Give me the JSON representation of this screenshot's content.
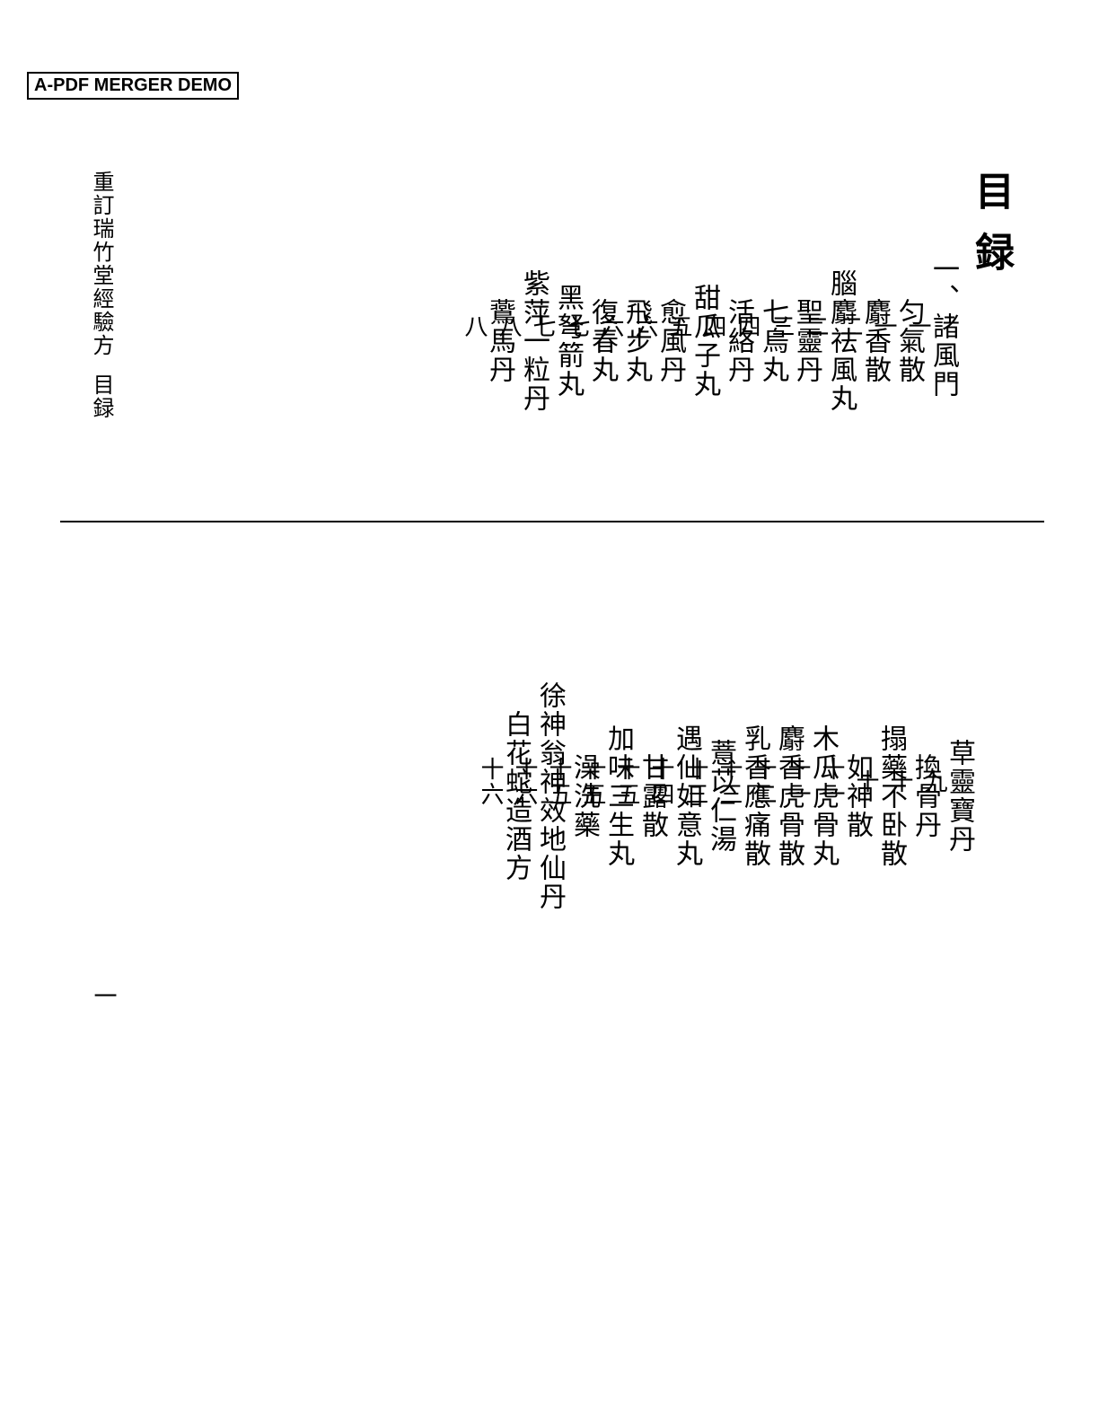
{
  "watermark": "A-PDF MERGER DEMO",
  "title": "目録",
  "book_label_a": "重訂瑞竹堂經驗方",
  "book_label_b": "目録",
  "folio": "一",
  "upper_entries": [
    {
      "name": "一、諸風門",
      "page": "一"
    },
    {
      "name": "　匀氣散",
      "page": "一"
    },
    {
      "name": "　麝香散",
      "page": "二"
    },
    {
      "name": "　腦麝祛風丸",
      "page": "二"
    },
    {
      "name": "　聖靈丹",
      "page": "三"
    },
    {
      "name": "　七烏丸",
      "page": "四"
    },
    {
      "name": "　活絡丹",
      "page": "四"
    },
    {
      "name": "　甜瓜子丸",
      "page": "五"
    },
    {
      "name": "　愈風丹",
      "page": "六"
    },
    {
      "name": "　飛步丸",
      "page": "六"
    },
    {
      "name": "　復春丸",
      "page": "七"
    },
    {
      "name": "　黑弩箭丸",
      "page": "七"
    },
    {
      "name": "　紫萍一粒丹",
      "page": "八"
    },
    {
      "name": "　鷰馬丹",
      "page": "八"
    }
  ],
  "lower_entries": [
    {
      "name": "　草靈寶丹",
      "page": "九"
    },
    {
      "name": "　換骨丹",
      "page": "十"
    },
    {
      "name": "　搨藥不卧散",
      "page": "十"
    },
    {
      "name": "　如神散",
      "page": "十一"
    },
    {
      "name": "　木瓜虎骨丸",
      "page": "十一"
    },
    {
      "name": "　麝香虎骨散",
      "page": "十二"
    },
    {
      "name": "　乳香應痛散",
      "page": "十三"
    },
    {
      "name": "　薏苡仁湯",
      "page": "十三"
    },
    {
      "name": "　遇仙如意丸",
      "page": "十四"
    },
    {
      "name": "　甘露散",
      "page": "十五"
    },
    {
      "name": "　加味三生丸",
      "page": "十五"
    },
    {
      "name": "　澡洗藥",
      "page": "十五"
    },
    {
      "name": "　徐神翁神效地仙丹",
      "page": "十六"
    },
    {
      "name": "　白花蛇造酒方",
      "page": "十六"
    }
  ]
}
